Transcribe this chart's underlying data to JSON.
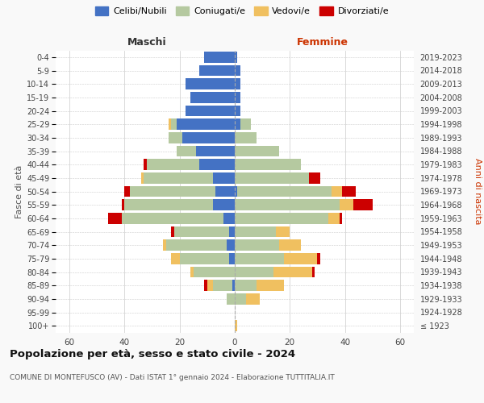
{
  "age_groups": [
    "100+",
    "95-99",
    "90-94",
    "85-89",
    "80-84",
    "75-79",
    "70-74",
    "65-69",
    "60-64",
    "55-59",
    "50-54",
    "45-49",
    "40-44",
    "35-39",
    "30-34",
    "25-29",
    "20-24",
    "15-19",
    "10-14",
    "5-9",
    "0-4"
  ],
  "birth_years": [
    "≤ 1923",
    "1924-1928",
    "1929-1933",
    "1934-1938",
    "1939-1943",
    "1944-1948",
    "1949-1953",
    "1954-1958",
    "1959-1963",
    "1964-1968",
    "1969-1973",
    "1974-1978",
    "1979-1983",
    "1984-1988",
    "1989-1993",
    "1994-1998",
    "1999-2003",
    "2004-2008",
    "2009-2013",
    "2014-2018",
    "2019-2023"
  ],
  "colors": {
    "celibe": "#4472C4",
    "coniugato": "#B5C9A0",
    "vedovo": "#F0C060",
    "divorziato": "#CC0000"
  },
  "maschi": {
    "celibe": [
      0,
      0,
      0,
      1,
      0,
      2,
      3,
      2,
      4,
      8,
      7,
      8,
      13,
      14,
      19,
      21,
      18,
      16,
      18,
      13,
      11
    ],
    "coniugato": [
      0,
      0,
      3,
      7,
      15,
      18,
      22,
      20,
      37,
      32,
      31,
      25,
      19,
      7,
      5,
      2,
      0,
      0,
      0,
      0,
      0
    ],
    "vedovo": [
      0,
      0,
      0,
      2,
      1,
      3,
      1,
      0,
      0,
      0,
      0,
      1,
      0,
      0,
      0,
      1,
      0,
      0,
      0,
      0,
      0
    ],
    "divorziato": [
      0,
      0,
      0,
      1,
      0,
      0,
      0,
      1,
      5,
      1,
      2,
      0,
      1,
      0,
      0,
      0,
      0,
      0,
      0,
      0,
      0
    ]
  },
  "femmine": {
    "nubile": [
      0,
      0,
      0,
      0,
      0,
      0,
      0,
      0,
      0,
      0,
      1,
      0,
      0,
      0,
      0,
      2,
      2,
      2,
      2,
      2,
      1
    ],
    "coniugata": [
      0,
      0,
      4,
      8,
      14,
      18,
      16,
      15,
      34,
      38,
      34,
      27,
      24,
      16,
      8,
      4,
      0,
      0,
      0,
      0,
      0
    ],
    "vedova": [
      1,
      0,
      5,
      10,
      14,
      12,
      8,
      5,
      4,
      5,
      4,
      0,
      0,
      0,
      0,
      0,
      0,
      0,
      0,
      0,
      0
    ],
    "divorziata": [
      0,
      0,
      0,
      0,
      1,
      1,
      0,
      0,
      1,
      7,
      5,
      4,
      0,
      0,
      0,
      0,
      0,
      0,
      0,
      0,
      0
    ]
  },
  "xlim": 65,
  "title": "Popolazione per età, sesso e stato civile - 2024",
  "subtitle": "COMUNE DI MONTEFUSCO (AV) - Dati ISTAT 1° gennaio 2024 - Elaborazione TUTTITALIA.IT",
  "ylabel_left": "Fasce di età",
  "ylabel_right": "Anni di nascita",
  "xlabel_maschi": "Maschi",
  "xlabel_femmine": "Femmine",
  "bg_color": "#f9f9f9",
  "plot_bg": "#ffffff",
  "grid_color": "#cccccc"
}
